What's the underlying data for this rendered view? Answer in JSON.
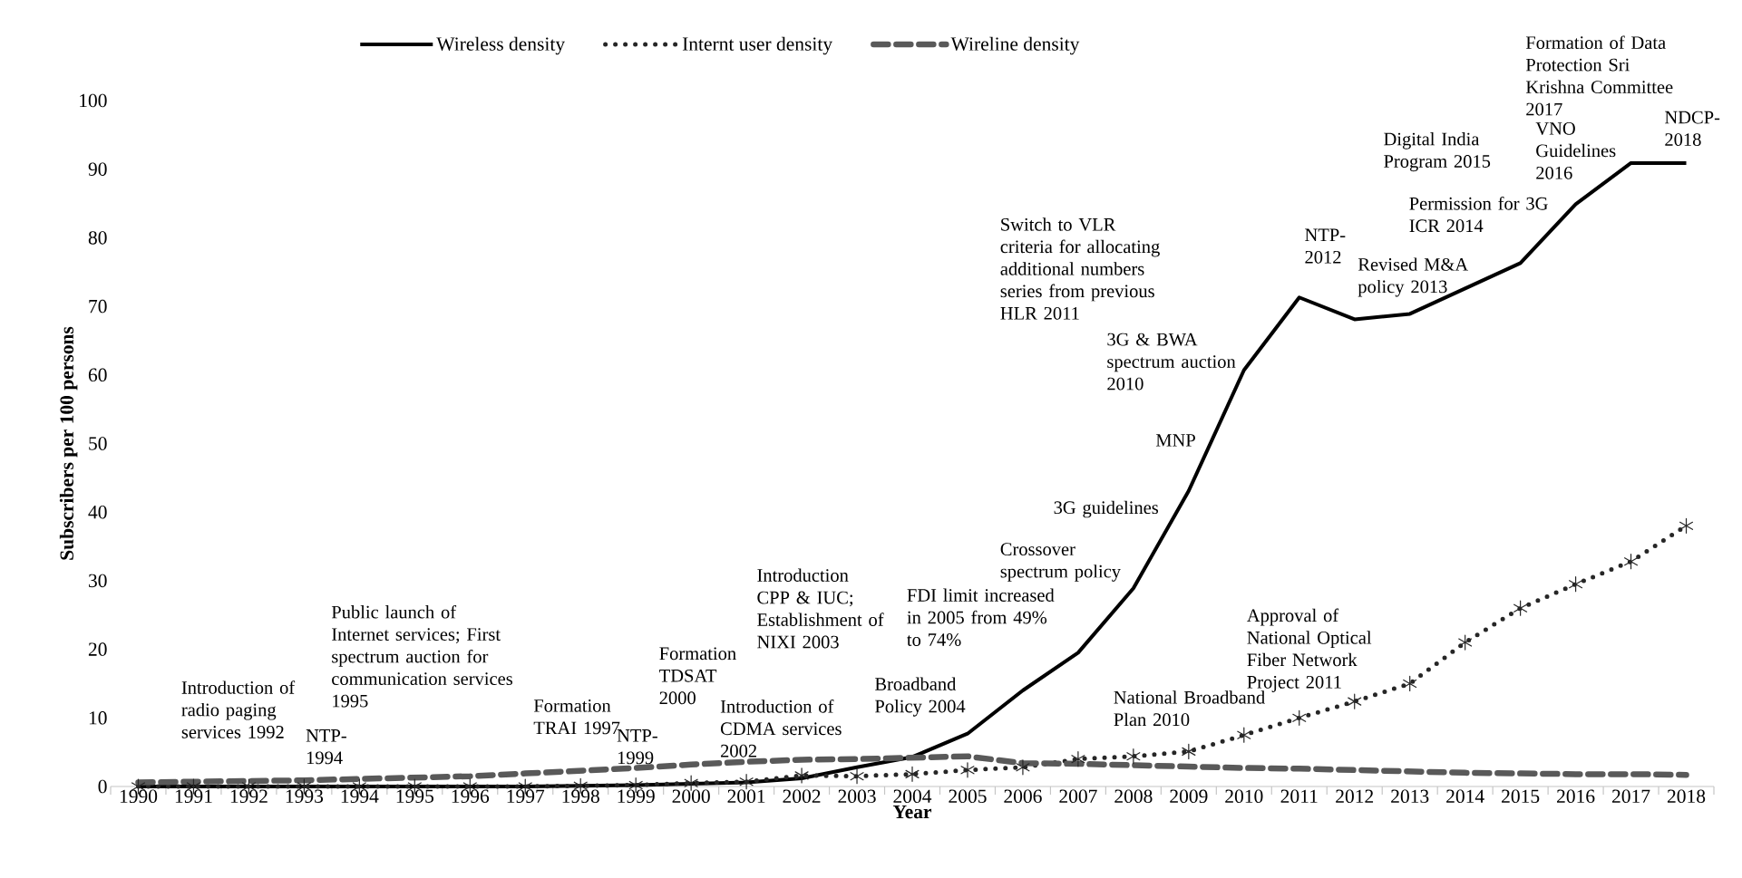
{
  "chart_data": {
    "type": "line",
    "xlabel": "Year",
    "ylabel": "Subscribers per 100 persons",
    "categories": [
      "1990",
      "1991",
      "1992",
      "1993",
      "1994",
      "1995",
      "1996",
      "1997",
      "1998",
      "1999",
      "2000",
      "2001",
      "2002",
      "2003",
      "2004",
      "2005",
      "2006",
      "2007",
      "2008",
      "2009",
      "2010",
      "2011",
      "2012",
      "2013",
      "2014",
      "2015",
      "2016",
      "2017",
      "2018"
    ],
    "series": [
      {
        "name": "Wireless density",
        "color": "#000000",
        "line_style": "solid",
        "marker": "none",
        "values": [
          0,
          0,
          0,
          0,
          0,
          0,
          0,
          0,
          0.1,
          0.2,
          0.4,
          0.6,
          1.2,
          2.8,
          4.3,
          7.7,
          14.0,
          19.5,
          28.9,
          43.1,
          60.7,
          71.3,
          68.1,
          68.9,
          72.6,
          76.3,
          84.9,
          90.9,
          90.9
        ]
      },
      {
        "name": "Internt user density",
        "color": "#262626",
        "line_style": "dotted",
        "marker": "cross",
        "values": [
          0,
          0,
          0,
          0,
          0,
          0,
          0,
          0,
          0.1,
          0.2,
          0.5,
          0.7,
          1.6,
          1.5,
          1.8,
          2.4,
          2.8,
          4.0,
          4.4,
          5.1,
          7.5,
          10.0,
          12.4,
          15.0,
          21.0,
          26.0,
          29.5,
          32.8,
          38.0
        ]
      },
      {
        "name": "Wireline density",
        "color": "#595959",
        "line_style": "dashed",
        "marker": "none",
        "values": [
          0.6,
          0.7,
          0.8,
          0.9,
          1.1,
          1.3,
          1.5,
          1.9,
          2.3,
          2.7,
          3.2,
          3.6,
          3.9,
          4.0,
          4.2,
          4.4,
          3.4,
          3.3,
          3.1,
          2.9,
          2.7,
          2.6,
          2.4,
          2.2,
          2.0,
          1.9,
          1.8,
          1.8,
          1.7
        ]
      }
    ],
    "ylim": [
      0,
      100
    ],
    "yticks": [
      0,
      10,
      20,
      30,
      40,
      50,
      60,
      70,
      80,
      90,
      100
    ],
    "grid": false,
    "legend": "top",
    "annotations": [
      "Introduction of radio paging services 1992",
      "NTP-1994",
      "Public launch of Internet services; First spectrum auction for communication services 1995",
      "Formation TRAI 1997",
      "NTP-1999",
      "Formation TDSAT 2000",
      "Introduction of CDMA services 2002",
      "Introduction CPP & IUC; Establishment of NIXI  2003",
      "Broadband Policy 2004",
      "FDI limit increased in 2005 from 49% to 74%",
      "Crossover spectrum policy",
      "3G guidelines",
      "MNP",
      "3G & BWA spectrum auction 2010",
      "Switch to VLR criteria for allocating additional numbers series from previous HLR 2011",
      "National Broadband Plan 2010",
      "Approval of National Optical Fiber Network Project 2011",
      "NTP-2012",
      "Revised M&A policy 2013",
      "Permission for 3G ICR 2014",
      "Digital India Program 2015",
      "VNO Guidelines 2016",
      "NDCP-2018",
      "Formation of Data Protection Sri Krishna Committee 2017"
    ]
  }
}
